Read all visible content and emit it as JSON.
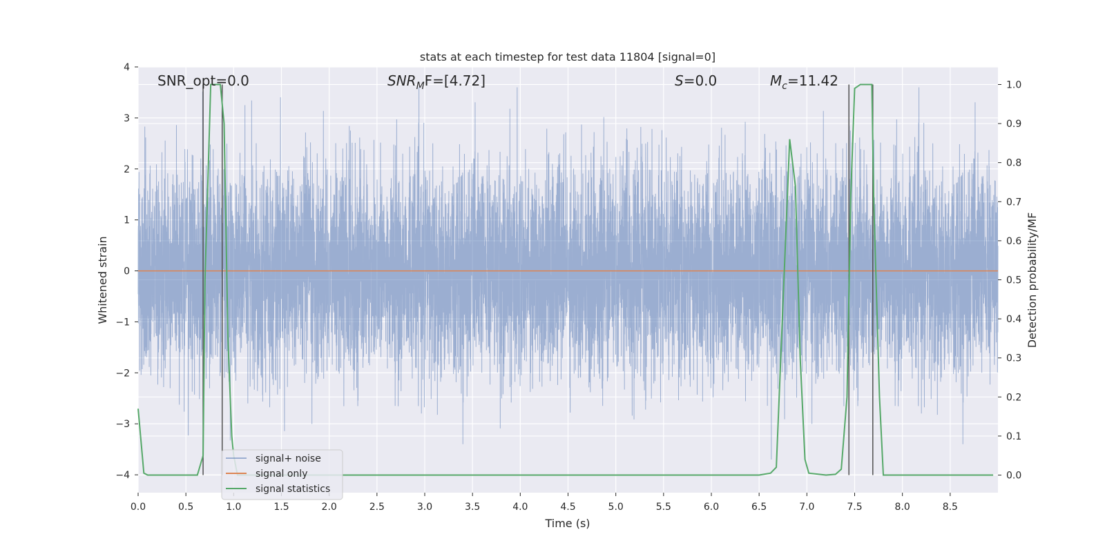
{
  "chart_data": {
    "type": "line",
    "title": "stats at each timestep for test data 11804 [signal=0]",
    "xlabel": "Time (s)",
    "ylabel_left": "Whitened strain",
    "ylabel_right": "Detection probability/MF",
    "xlim": [
      0.0,
      9.0
    ],
    "ylim_left": [
      -4.35,
      4.0
    ],
    "ylim_right": [
      -0.045,
      1.045
    ],
    "x_ticks": [
      "0.0",
      "0.5",
      "1.0",
      "1.5",
      "2.0",
      "2.5",
      "3.0",
      "3.5",
      "4.0",
      "4.5",
      "5.0",
      "5.5",
      "6.0",
      "6.5",
      "7.0",
      "7.5",
      "8.0",
      "8.5"
    ],
    "y_ticks_left": [
      "-4",
      "-3",
      "-2",
      "-1",
      "0",
      "1",
      "2",
      "3",
      "4"
    ],
    "y_ticks_right": [
      "0.0",
      "0.1",
      "0.2",
      "0.3",
      "0.4",
      "0.5",
      "0.6",
      "0.7",
      "0.8",
      "0.9",
      "1.0"
    ],
    "grid": true,
    "annotations": [
      {
        "pre": "SNR_opt=0.0",
        "italic": "",
        "sub": "",
        "post": ""
      },
      {
        "pre": "",
        "italic": "SNR",
        "sub": "M",
        "post": "F=[4.72]"
      },
      {
        "pre": "",
        "italic": "S",
        "sub": "",
        "post": "=0.0"
      },
      {
        "pre": "",
        "italic": "M",
        "sub": "c",
        "post": "=11.42"
      }
    ],
    "legend": {
      "position": "lower-left",
      "entries": [
        "signal+ noise",
        "signal only",
        "signal statistics"
      ]
    },
    "colors": {
      "signal_noise": "#4c72b0",
      "signal_only": "#dd8452",
      "signal_statistics": "#55a868",
      "vlines": "#505050",
      "plot_bg": "#eaeaf2",
      "grid": "#ffffff"
    },
    "series": [
      {
        "name": "signal+ noise",
        "axis": "left",
        "kind": "noise",
        "mean": 0,
        "max": 3.6,
        "min": -3.7,
        "x_range": [
          0.0,
          9.0
        ]
      },
      {
        "name": "signal only",
        "axis": "left",
        "x": [
          0.0,
          9.0
        ],
        "y": [
          0.0,
          0.0
        ]
      },
      {
        "name": "signal statistics",
        "axis": "right",
        "x": [
          0.0,
          0.06,
          0.1,
          0.2,
          0.4,
          0.62,
          0.68,
          0.7,
          0.76,
          0.78,
          0.86,
          0.9,
          0.94,
          0.98,
          1.0,
          1.04,
          1.2,
          2.0,
          3.0,
          4.0,
          5.0,
          6.0,
          6.5,
          6.62,
          6.68,
          6.76,
          6.82,
          6.88,
          6.93,
          6.98,
          7.02,
          7.2,
          7.3,
          7.36,
          7.42,
          7.46,
          7.5,
          7.56,
          7.6,
          7.68,
          7.7,
          7.76,
          7.8,
          7.86,
          8.0,
          8.5,
          8.95
        ],
        "y": [
          0.17,
          0.005,
          0.0,
          0.0,
          0.0,
          0.0,
          0.05,
          0.5,
          1.0,
          1.0,
          1.0,
          0.9,
          0.35,
          0.1,
          0.05,
          0.0,
          0.0,
          0.0,
          0.0,
          0.0,
          0.0,
          0.0,
          0.0,
          0.005,
          0.02,
          0.5,
          0.86,
          0.74,
          0.3,
          0.04,
          0.005,
          0.0,
          0.002,
          0.015,
          0.2,
          0.72,
          0.99,
          1.0,
          1.0,
          1.0,
          0.7,
          0.2,
          0.0,
          0.0,
          0.0,
          0.0,
          0.0
        ]
      }
    ],
    "vlines": [
      0.68,
      0.88,
      7.44,
      7.69
    ],
    "vline_range_right": [
      0.0,
      1.0
    ]
  }
}
